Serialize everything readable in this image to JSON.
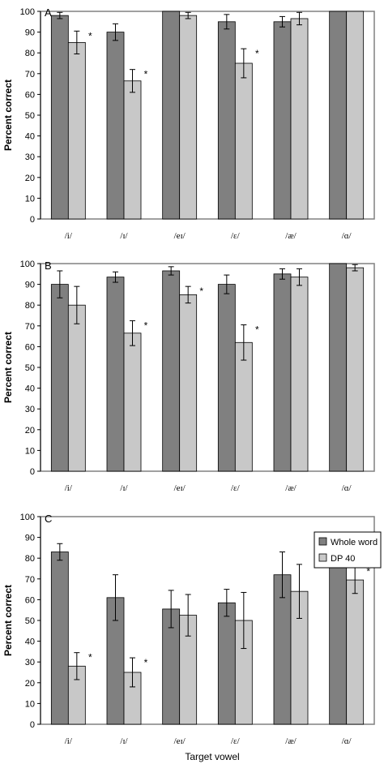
{
  "figure": {
    "xlabel": "Target vowel",
    "series_colors": [
      "#808080",
      "#c8c8c8"
    ],
    "legend": [
      "Whole word",
      "DP 40"
    ]
  },
  "chart_data": [
    {
      "type": "bar",
      "panel_label": "A",
      "ylabel": "Percent correct",
      "ylim": [
        0,
        100
      ],
      "yticks": [
        0,
        10,
        20,
        30,
        40,
        50,
        60,
        70,
        80,
        90,
        100
      ],
      "categories": [
        "/i/",
        "/ɪ/",
        "/eɪ/",
        "/ɛ/",
        "/æ/",
        "/ɑ/"
      ],
      "series": [
        {
          "values": [
            98,
            90,
            100,
            95,
            95,
            100
          ],
          "err": [
            1.5,
            4,
            0,
            3.5,
            2.5,
            0
          ]
        },
        {
          "values": [
            85,
            66.5,
            98,
            75,
            96.5,
            100
          ],
          "err": [
            5.5,
            5.5,
            1.5,
            7,
            3,
            0
          ]
        }
      ],
      "asterisks": [
        0,
        1,
        3
      ],
      "grid": false
    },
    {
      "type": "bar",
      "panel_label": "B",
      "ylabel": "Percent correct",
      "ylim": [
        0,
        100
      ],
      "yticks": [
        0,
        10,
        20,
        30,
        40,
        50,
        60,
        70,
        80,
        90,
        100
      ],
      "categories": [
        "/i/",
        "/ɪ/",
        "/eɪ/",
        "/ɛ/",
        "/æ/",
        "/ɑ/"
      ],
      "series": [
        {
          "values": [
            90,
            93.5,
            96.5,
            90,
            95,
            100
          ],
          "err": [
            6.5,
            2.5,
            2,
            4.5,
            2.5,
            0
          ]
        },
        {
          "values": [
            80,
            66.5,
            85,
            62,
            93.5,
            98
          ],
          "err": [
            9,
            6,
            4,
            8.5,
            4,
            1.5
          ]
        }
      ],
      "asterisks": [
        1,
        2,
        3
      ],
      "grid": false
    },
    {
      "type": "bar",
      "panel_label": "C",
      "ylabel": "Percent correct",
      "ylim": [
        0,
        100
      ],
      "yticks": [
        0,
        10,
        20,
        30,
        40,
        50,
        60,
        70,
        80,
        90,
        100
      ],
      "categories": [
        "/i/",
        "/ɪ/",
        "/eɪ/",
        "/ɛ/",
        "/æ/",
        "/ɑ/"
      ],
      "series": [
        {
          "name": "Whole word",
          "values": [
            83,
            61,
            55.5,
            58.5,
            72,
            80.5
          ],
          "err": [
            4,
            11,
            9,
            6.5,
            11,
            4.5
          ]
        },
        {
          "name": "DP 40",
          "values": [
            28,
            25,
            52.5,
            50,
            64,
            69.5
          ],
          "err": [
            6.5,
            7,
            10,
            13.5,
            13,
            6.5
          ]
        }
      ],
      "asterisks": [
        0,
        1,
        5
      ],
      "legend_position": "top-right",
      "grid": false
    }
  ]
}
